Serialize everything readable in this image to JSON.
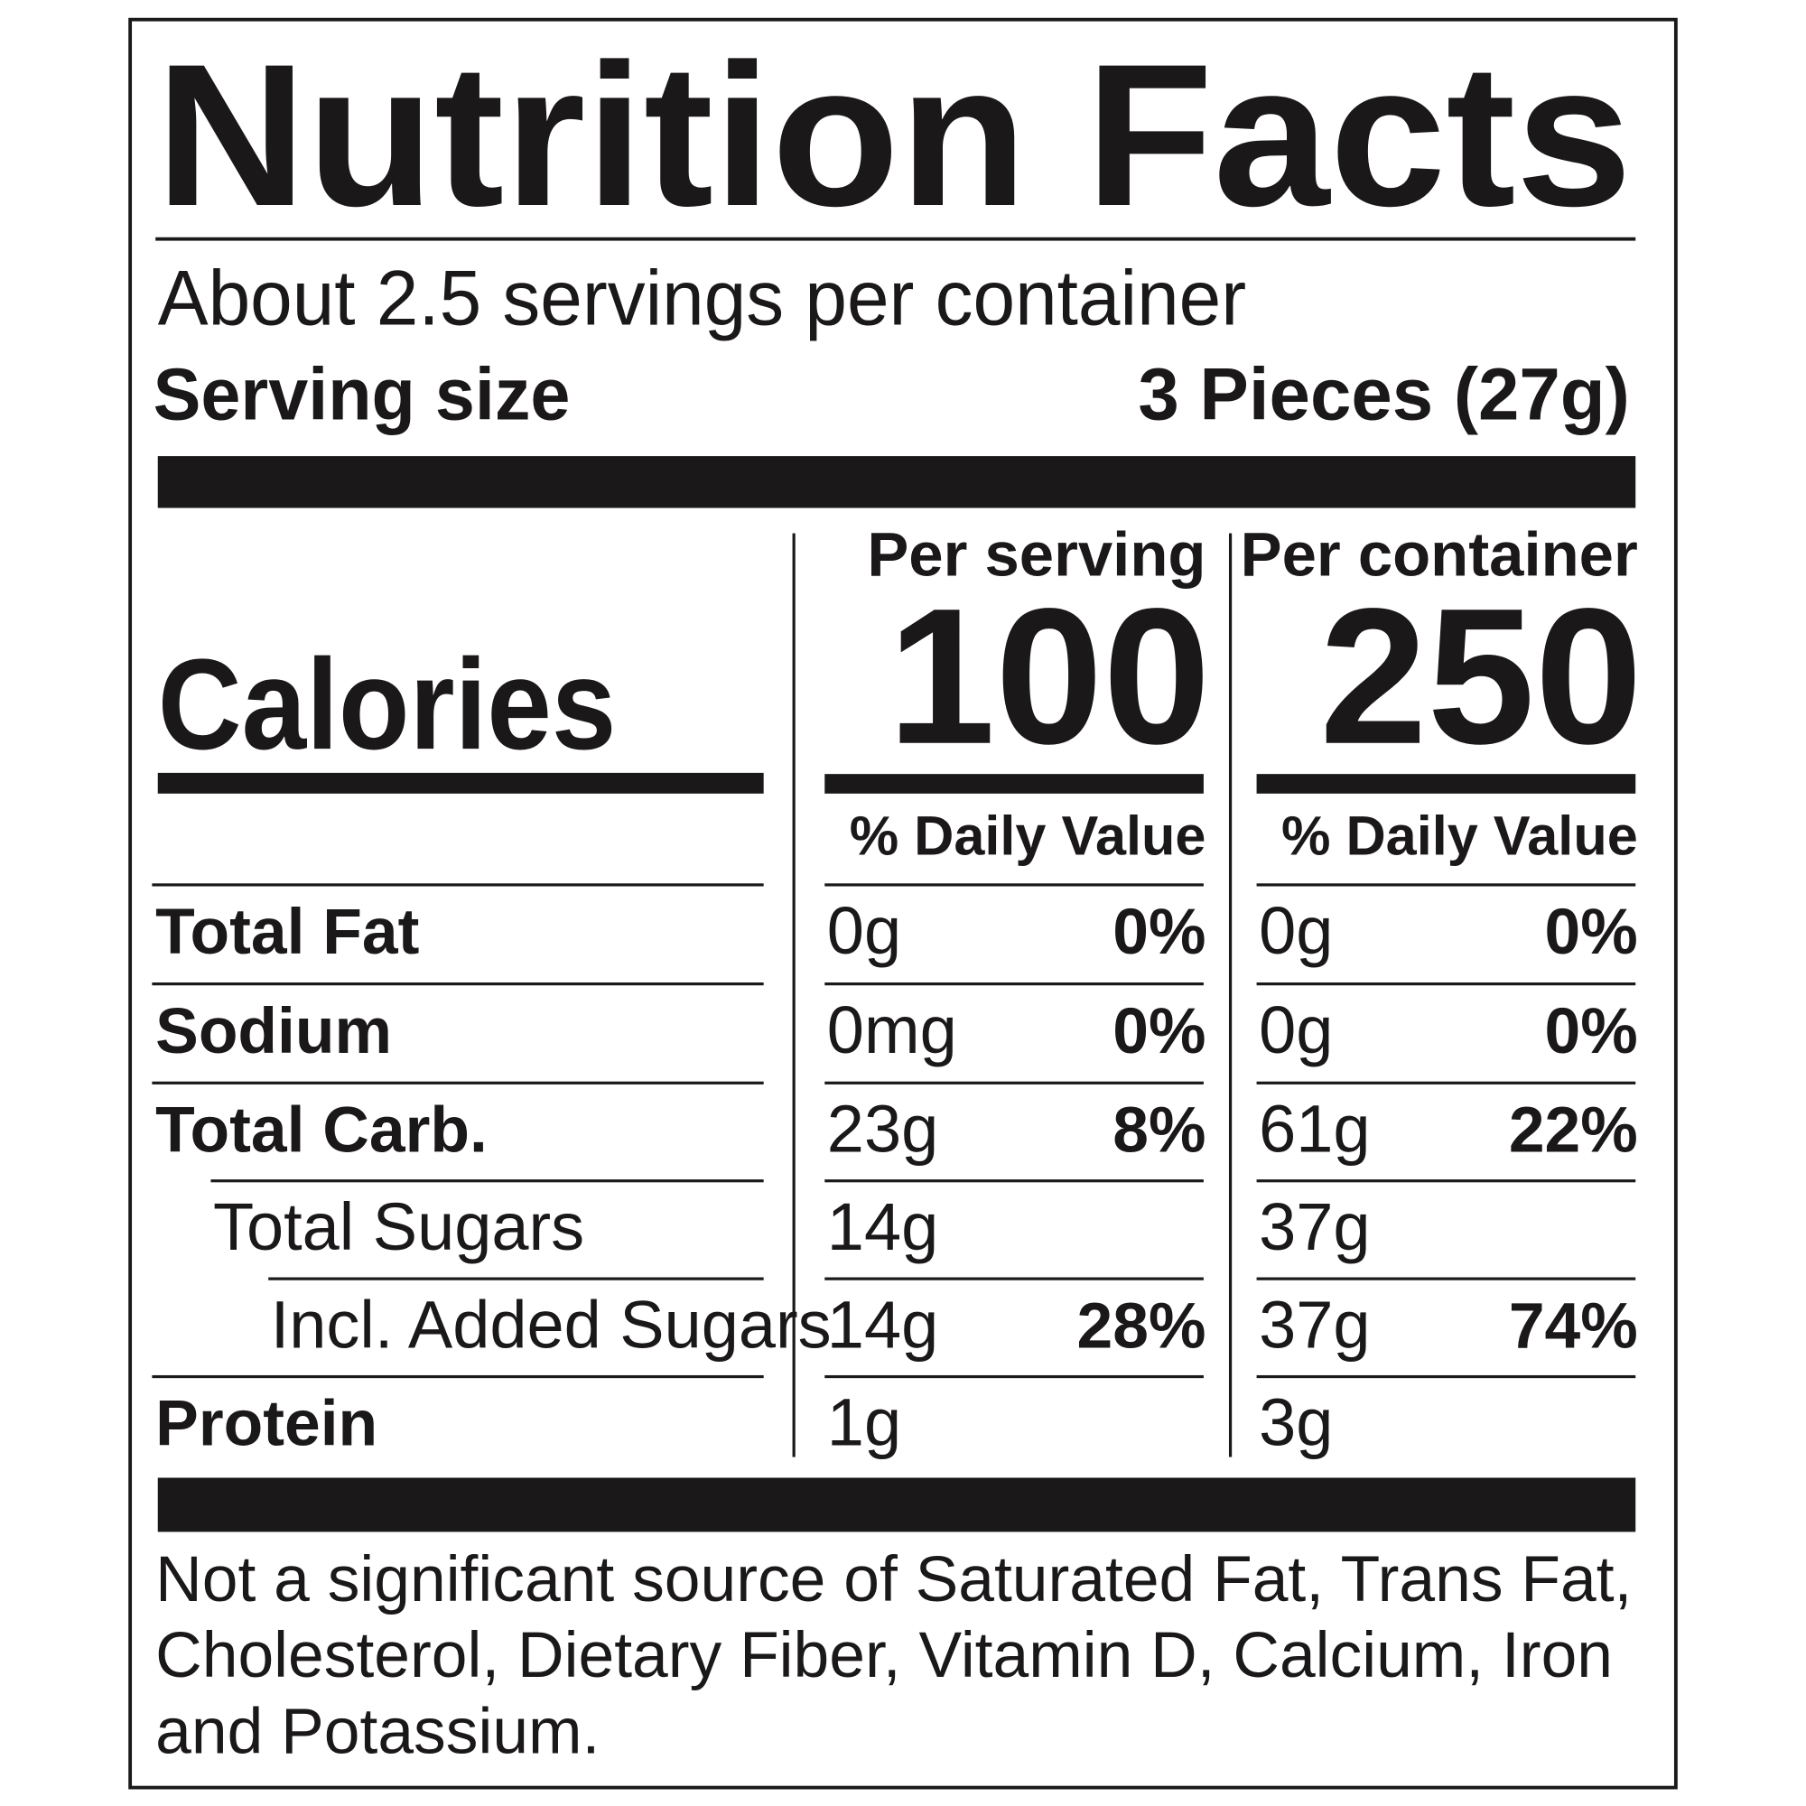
{
  "header": {
    "title": "Nutrition Facts",
    "servings_per_container": "About 2.5 servings per container",
    "serving_size": {
      "label": "Serving size",
      "value": "3 Pieces (27g)"
    }
  },
  "calories": {
    "label": "Calories",
    "columns": [
      {
        "heading": "Per serving",
        "value": 100,
        "dv_heading": "% Daily Value"
      },
      {
        "heading": "Per container",
        "value": 250,
        "dv_heading": "% Daily Value"
      }
    ]
  },
  "nutrients": [
    {
      "name": "Total Fat",
      "amounts": [
        "0g",
        "0g"
      ],
      "dv": [
        "0%",
        "0%"
      ]
    },
    {
      "name": "Sodium",
      "amounts": [
        "0mg",
        "0g"
      ],
      "dv": [
        "0%",
        "0%"
      ]
    },
    {
      "name": "Total Carb.",
      "amounts": [
        "23g",
        "61g"
      ],
      "dv": [
        "8%",
        "22%"
      ]
    },
    {
      "name": "Total Sugars",
      "amounts": [
        "14g",
        "37g"
      ]
    },
    {
      "name": "Incl. Added Sugars",
      "amounts": [
        "14g",
        "37g"
      ],
      "dv": [
        "28%",
        "74%"
      ]
    },
    {
      "name": "Protein",
      "amounts": [
        "1g",
        "3g"
      ]
    }
  ],
  "footnote": [
    "Not a significant source of Saturated Fat, Trans Fat,",
    "Cholesterol, Dietary Fiber, Vitamin D, Calcium, Iron",
    "and Potassium."
  ]
}
